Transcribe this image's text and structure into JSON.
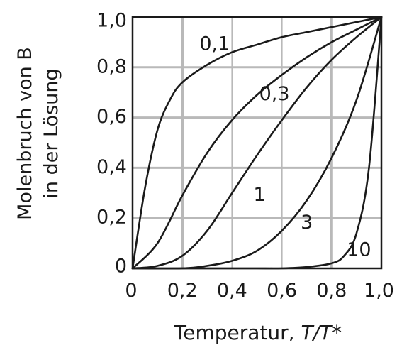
{
  "chart_data": {
    "type": "line",
    "title": "",
    "xlabel": "Temperatur, T/T*",
    "xlabel_parts": {
      "prefix": "Temperatur, ",
      "italic": "T/T",
      "suffix": "*"
    },
    "ylabel_lines": [
      "Molenbruch von B",
      "in der Lösung"
    ],
    "xlim": [
      0,
      1
    ],
    "ylim": [
      0,
      1
    ],
    "xticks": [
      "0",
      "0,2",
      "0,4",
      "0,6",
      "0,8",
      "1,0"
    ],
    "yticks": [
      "0",
      "0,2",
      "0,4",
      "0,6",
      "0,8",
      "1,0"
    ],
    "grid": true,
    "colors": {
      "curve": "#1a1a1a",
      "grid": "#b9b9b9",
      "axis": "#1a1a1a"
    },
    "series": [
      {
        "name": "0,1",
        "x": [
          0,
          0.05,
          0.1,
          0.15,
          0.2,
          0.3,
          0.4,
          0.5,
          0.6,
          0.7,
          0.8,
          0.9,
          1.0
        ],
        "y": [
          0,
          0.32,
          0.55,
          0.67,
          0.74,
          0.81,
          0.86,
          0.89,
          0.92,
          0.94,
          0.96,
          0.98,
          1.0
        ]
      },
      {
        "name": "0,3",
        "x": [
          0,
          0.1,
          0.2,
          0.3,
          0.4,
          0.5,
          0.6,
          0.7,
          0.8,
          0.9,
          1.0
        ],
        "y": [
          0,
          0.1,
          0.29,
          0.46,
          0.59,
          0.69,
          0.77,
          0.84,
          0.9,
          0.95,
          1.0
        ]
      },
      {
        "name": "1",
        "x": [
          0,
          0.1,
          0.2,
          0.3,
          0.4,
          0.5,
          0.6,
          0.7,
          0.8,
          0.9,
          1.0
        ],
        "y": [
          0,
          0.01,
          0.05,
          0.15,
          0.3,
          0.45,
          0.59,
          0.72,
          0.83,
          0.92,
          1.0
        ]
      },
      {
        "name": "3",
        "x": [
          0,
          0.2,
          0.3,
          0.4,
          0.5,
          0.6,
          0.7,
          0.8,
          0.9,
          1.0
        ],
        "y": [
          0,
          0,
          0.01,
          0.03,
          0.07,
          0.15,
          0.27,
          0.44,
          0.67,
          1.0
        ]
      },
      {
        "name": "10",
        "x": [
          0,
          0.4,
          0.5,
          0.6,
          0.7,
          0.8,
          0.85,
          0.9,
          0.95,
          1.0
        ],
        "y": [
          0,
          0,
          0,
          0,
          0.005,
          0.02,
          0.05,
          0.14,
          0.4,
          1.0
        ]
      }
    ],
    "curve_labels": [
      {
        "text": "0,1",
        "x": 0.33,
        "y": 0.89
      },
      {
        "text": "0,3",
        "x": 0.57,
        "y": 0.69
      },
      {
        "text": "1",
        "x": 0.51,
        "y": 0.29
      },
      {
        "text": "3",
        "x": 0.7,
        "y": 0.18
      },
      {
        "text": "10",
        "x": 0.91,
        "y": 0.07
      }
    ]
  }
}
